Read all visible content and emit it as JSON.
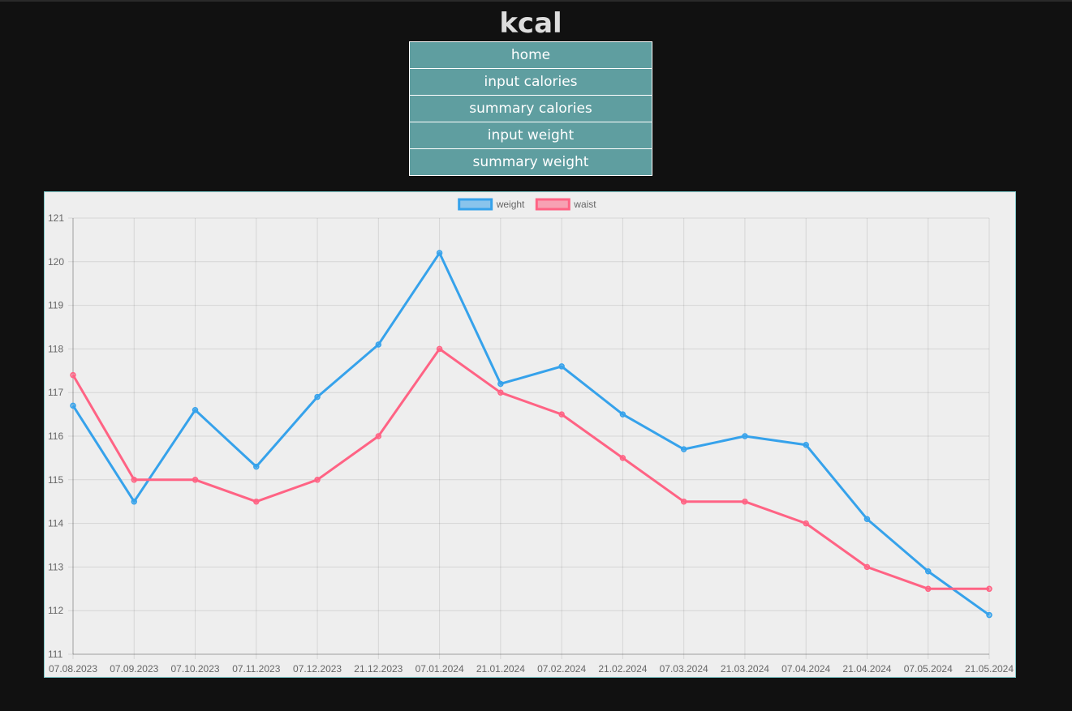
{
  "app": {
    "title": "kcal"
  },
  "nav": {
    "items": [
      {
        "label": "home"
      },
      {
        "label": "input calories"
      },
      {
        "label": "summary calories"
      },
      {
        "label": "input weight"
      },
      {
        "label": "summary weight"
      }
    ]
  },
  "colors": {
    "background": "#111111",
    "nav_button": "#5f9ea0",
    "chart_background": "#eeeeee",
    "weight_line": "#36a2eb",
    "waist_line": "#ff6384"
  },
  "chart_data": {
    "type": "line",
    "categories": [
      "07.08.2023",
      "07.09.2023",
      "07.10.2023",
      "07.11.2023",
      "07.12.2023",
      "21.12.2023",
      "07.01.2024",
      "21.01.2024",
      "07.02.2024",
      "21.02.2024",
      "07.03.2024",
      "21.03.2024",
      "07.04.2024",
      "21.04.2024",
      "07.05.2024",
      "21.05.2024"
    ],
    "series": [
      {
        "name": "weight",
        "color": "#36a2eb",
        "values": [
          116.7,
          114.5,
          116.6,
          115.3,
          116.9,
          118.1,
          120.2,
          117.2,
          117.6,
          116.5,
          115.7,
          116.0,
          115.8,
          114.1,
          112.9,
          111.9
        ]
      },
      {
        "name": "waist",
        "color": "#ff6384",
        "values": [
          117.4,
          115.0,
          115.0,
          114.5,
          115.0,
          116.0,
          118.0,
          117.0,
          116.5,
          115.5,
          114.5,
          114.5,
          114.0,
          113.0,
          112.5,
          112.5
        ]
      }
    ],
    "ylim": [
      111,
      121
    ],
    "yticks": [
      "111",
      "112",
      "113",
      "114",
      "115",
      "116",
      "117",
      "118",
      "119",
      "120",
      "121"
    ],
    "grid": true,
    "legend_position": "top-center"
  }
}
